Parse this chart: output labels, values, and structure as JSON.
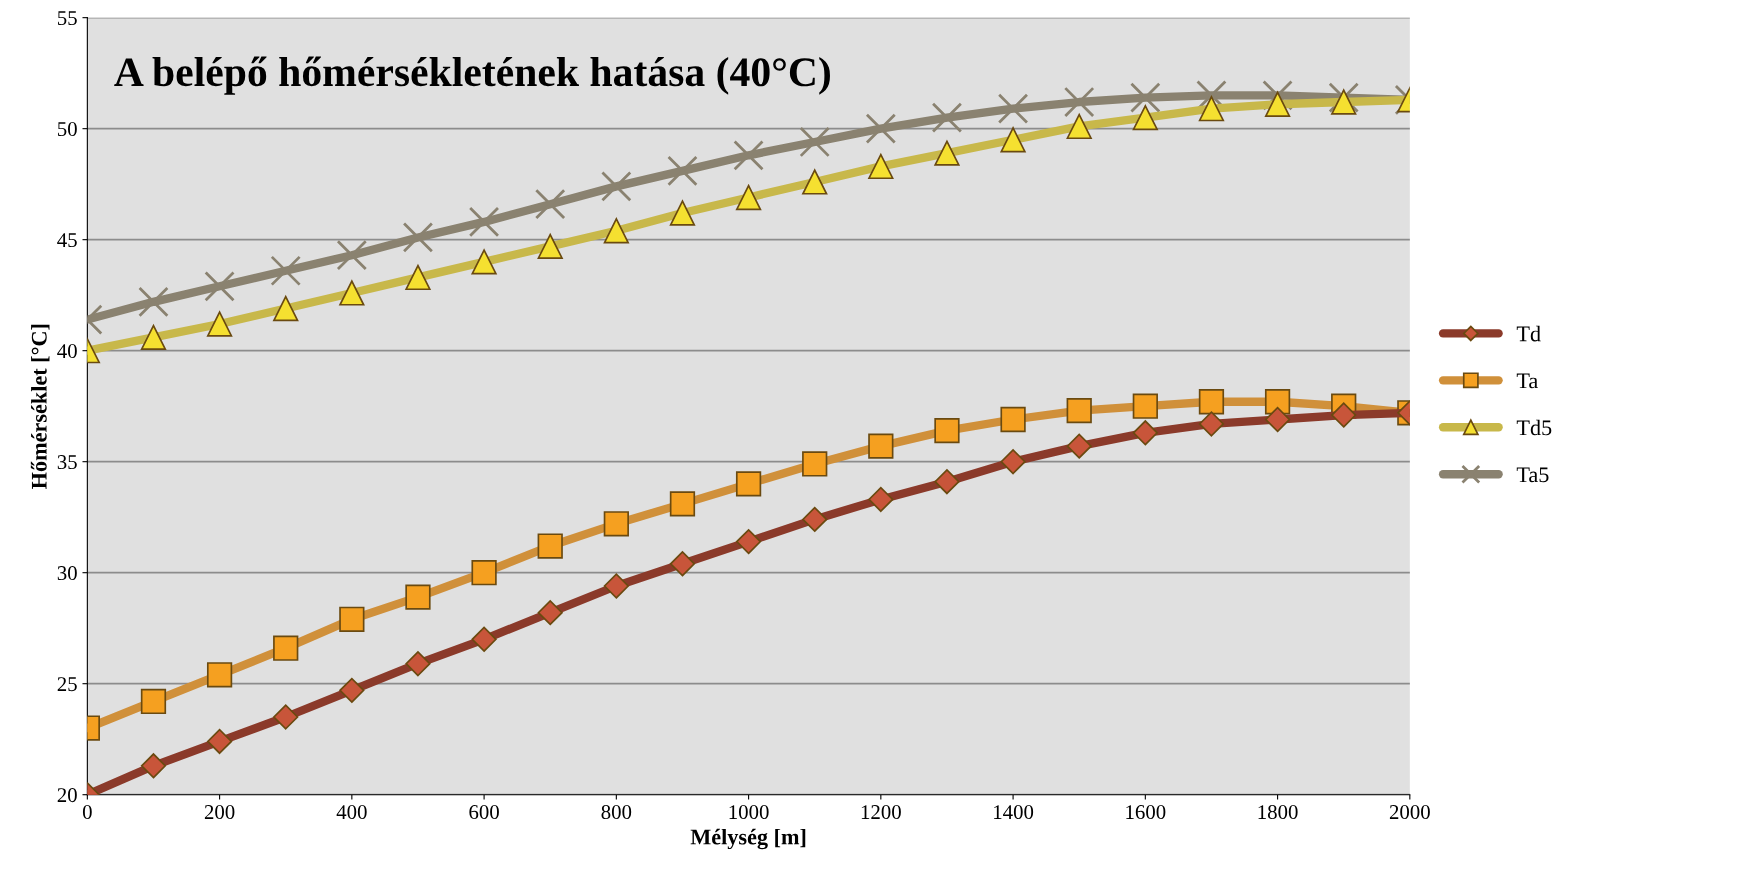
{
  "chart_data": {
    "type": "line",
    "title": "A belépő hőmérsékletének hatása (40°C)",
    "xlabel": "Mélység [m]",
    "ylabel": "Hőmérséklet [°C]",
    "x": [
      0,
      100,
      200,
      300,
      400,
      500,
      600,
      700,
      800,
      900,
      1000,
      1100,
      1200,
      1300,
      1400,
      1500,
      1600,
      1700,
      1800,
      1900,
      2000
    ],
    "series": [
      {
        "name": "Td",
        "color": "#8b3a2a",
        "marker": "diamond",
        "values": [
          20.0,
          21.3,
          22.4,
          23.5,
          24.7,
          25.9,
          27.0,
          28.2,
          29.4,
          30.4,
          31.4,
          32.4,
          33.3,
          34.1,
          35.0,
          35.7,
          36.3,
          36.7,
          36.9,
          37.1,
          37.2
        ]
      },
      {
        "name": "Ta",
        "color": "#d0903a",
        "marker": "square",
        "values": [
          23.0,
          24.2,
          25.4,
          26.6,
          27.9,
          28.9,
          30.0,
          31.2,
          32.2,
          33.1,
          34.0,
          34.9,
          35.7,
          36.4,
          36.9,
          37.3,
          37.5,
          37.7,
          37.7,
          37.5,
          37.2
        ]
      },
      {
        "name": "Td5",
        "color": "#c8b84a",
        "marker": "triangle",
        "values": [
          40.0,
          40.6,
          41.2,
          41.9,
          42.6,
          43.3,
          44.0,
          44.7,
          45.4,
          46.2,
          46.9,
          47.6,
          48.3,
          48.9,
          49.5,
          50.1,
          50.5,
          50.9,
          51.1,
          51.2,
          51.3
        ]
      },
      {
        "name": "Ta5",
        "color": "#8a8270",
        "marker": "cross",
        "values": [
          41.4,
          42.2,
          42.9,
          43.6,
          44.3,
          45.1,
          45.8,
          46.6,
          47.4,
          48.1,
          48.8,
          49.4,
          50.0,
          50.5,
          50.9,
          51.2,
          51.4,
          51.5,
          51.5,
          51.4,
          51.3
        ]
      }
    ],
    "xlim": [
      0,
      2000
    ],
    "xticks": [
      0,
      200,
      400,
      600,
      800,
      1000,
      1200,
      1400,
      1600,
      1800,
      2000
    ],
    "ylim": [
      20,
      55
    ],
    "yticks": [
      20,
      25,
      30,
      35,
      40,
      45,
      50,
      55
    ],
    "grid": "y",
    "legend": "right"
  }
}
